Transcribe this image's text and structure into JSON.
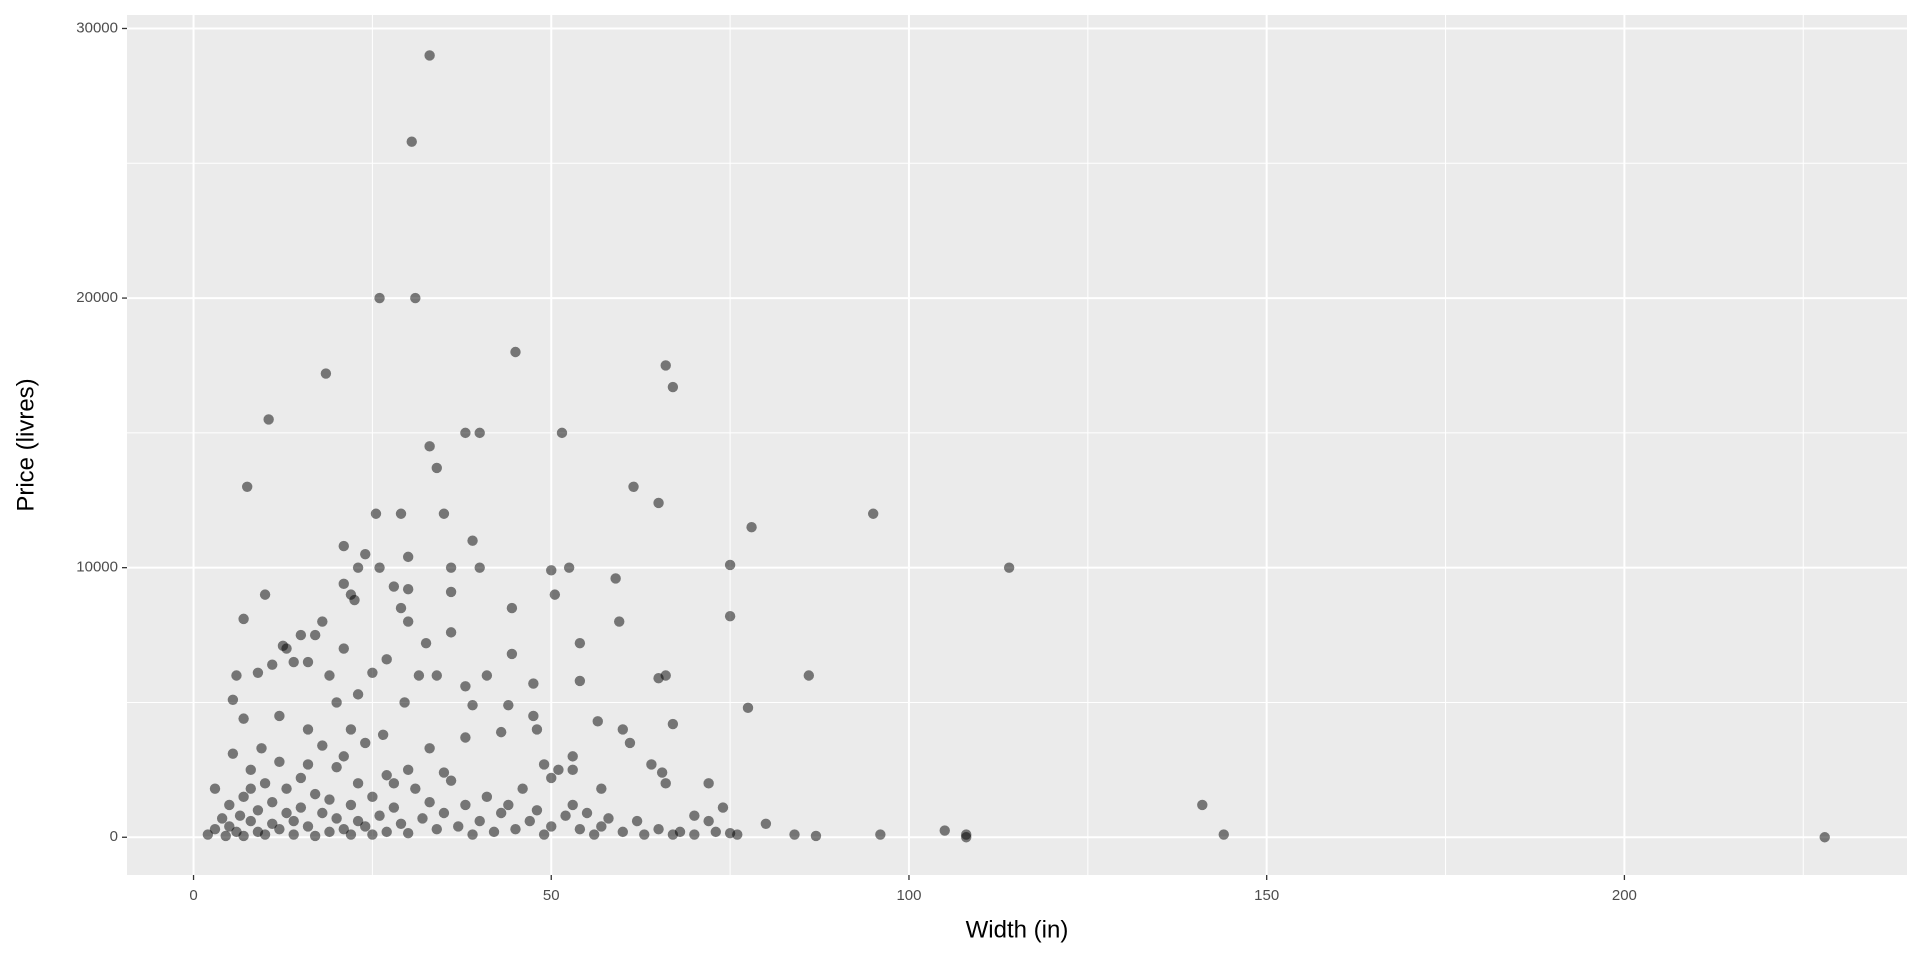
{
  "chart_data": {
    "type": "scatter",
    "x_label": "Width (in)",
    "y_label": "Price (livres)",
    "xlim": [
      -9.3,
      239.5
    ],
    "ylim": [
      -1400,
      30500
    ],
    "xticks": [
      0,
      50,
      100,
      150,
      200
    ],
    "yticks": [
      0,
      10000,
      20000,
      30000
    ],
    "x_minor_grid": [
      25,
      75,
      125,
      175,
      225
    ],
    "y_minor_grid": [
      5000,
      15000,
      25000
    ],
    "grid": true,
    "panel_color": "#ebebeb",
    "color": "#000000",
    "point_alpha": 0.5,
    "x": [
      33,
      30.5,
      26,
      31,
      45,
      66,
      67,
      18.5,
      10.5,
      38,
      40,
      51.5,
      33,
      34,
      7.5,
      61.5,
      65,
      25.5,
      29,
      35,
      95,
      78,
      39,
      21,
      24,
      30,
      36,
      40,
      23,
      26,
      50,
      52.5,
      75,
      114,
      59,
      21,
      36,
      28,
      30,
      50.5,
      10,
      22,
      22.5,
      29,
      44.5,
      75,
      59.5,
      7,
      18,
      30,
      36,
      17,
      15,
      12.5,
      32.5,
      54,
      13,
      21,
      44.5,
      27,
      16,
      14,
      11,
      25,
      31.5,
      34,
      38,
      41,
      47.5,
      54,
      65,
      66,
      86,
      6,
      9,
      19,
      23,
      5.5,
      20,
      29.5,
      39,
      44,
      77.5,
      47.5,
      56.5,
      67,
      7,
      12,
      16,
      22,
      48,
      60,
      38,
      43,
      61,
      53,
      26.5,
      9.5,
      5.5,
      33,
      49,
      64,
      65.5,
      66,
      72,
      53,
      51,
      28,
      35,
      3,
      8,
      57,
      74,
      80,
      70,
      84,
      87,
      96,
      105,
      108,
      108,
      141,
      144,
      228,
      2,
      3,
      4,
      4.5,
      5,
      5,
      6,
      6.5,
      7,
      7,
      8,
      8,
      9,
      9,
      10,
      10,
      11,
      11,
      12,
      12,
      13,
      13,
      14,
      14,
      15,
      15,
      16,
      16,
      17,
      17,
      18,
      18,
      19,
      19,
      20,
      20,
      21,
      21,
      22,
      22,
      23,
      23,
      24,
      24,
      25,
      25,
      26,
      27,
      27,
      28,
      29,
      30,
      30,
      31,
      32,
      33,
      34,
      35,
      36,
      37,
      38,
      39,
      40,
      41,
      42,
      43,
      44,
      45,
      46,
      47,
      48,
      49,
      50,
      50,
      52,
      53,
      54,
      55,
      56,
      57,
      58,
      60,
      62,
      63,
      65,
      67,
      68,
      70,
      72,
      73,
      75,
      76
    ],
    "values": [
      29000,
      25800,
      20000,
      20000,
      18000,
      17500,
      16700,
      17200,
      15500,
      15000,
      15000,
      15000,
      14500,
      13700,
      13000,
      13000,
      12400,
      12000,
      12000,
      12000,
      12000,
      11500,
      11000,
      10800,
      10500,
      10400,
      10000,
      10000,
      10000,
      10000,
      9900,
      10000,
      10100,
      10000,
      9600,
      9400,
      9100,
      9300,
      9200,
      9000,
      9000,
      9000,
      8800,
      8500,
      8500,
      8200,
      8000,
      8100,
      8000,
      8000,
      7600,
      7500,
      7500,
      7100,
      7200,
      7200,
      7000,
      7000,
      6800,
      6600,
      6500,
      6500,
      6400,
      6100,
      6000,
      6000,
      5600,
      6000,
      5700,
      5800,
      5900,
      6000,
      6000,
      6000,
      6100,
      6000,
      5300,
      5100,
      5000,
      5000,
      4900,
      4900,
      4800,
      4500,
      4300,
      4200,
      4400,
      4500,
      4000,
      4000,
      4000,
      4000,
      3700,
      3900,
      3500,
      3000,
      3800,
      3300,
      3100,
      3300,
      2700,
      2700,
      2400,
      2000,
      2000,
      2500,
      2500,
      2000,
      2400,
      1800,
      1800,
      1800,
      1100,
      500,
      800,
      100,
      50,
      100,
      250,
      100,
      0,
      1200,
      100,
      0,
      100,
      300,
      700,
      50,
      1200,
      400,
      200,
      800,
      1500,
      50,
      2500,
      600,
      1000,
      200,
      2000,
      100,
      1300,
      500,
      2800,
      300,
      1800,
      900,
      600,
      100,
      2200,
      1100,
      400,
      2700,
      1600,
      50,
      3400,
      900,
      200,
      1400,
      2600,
      700,
      300,
      3000,
      1200,
      100,
      2000,
      600,
      3500,
      400,
      1500,
      100,
      800,
      2300,
      200,
      1100,
      500,
      2500,
      150,
      1800,
      700,
      1300,
      300,
      900,
      2100,
      400,
      1200,
      100,
      600,
      1500,
      200,
      900,
      1200,
      300,
      1800,
      600,
      1000,
      100,
      2200,
      400,
      800,
      1200,
      300,
      900,
      100,
      400,
      700,
      200,
      600,
      100,
      300,
      100,
      200,
      100,
      600,
      200,
      150,
      100
    ]
  }
}
